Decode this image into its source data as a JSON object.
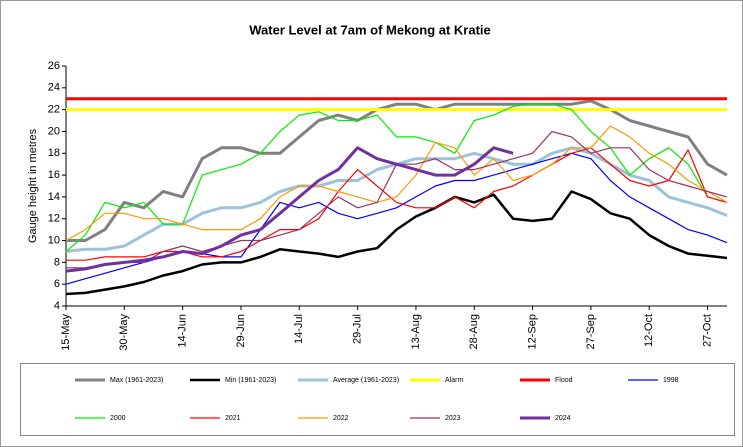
{
  "chart_data": {
    "type": "line",
    "title": "Water Level at 7am  of Mekong at Kratie",
    "y_label": "Gauge  height in metres",
    "categories": [
      "15-May",
      null,
      null,
      "30-May",
      null,
      null,
      "14-Jun",
      null,
      null,
      "29-Jun",
      null,
      null,
      "14-Jul",
      null,
      null,
      "29-Jul",
      null,
      null,
      "13-Aug",
      null,
      null,
      "28-Aug",
      null,
      null,
      "12-Sep",
      null,
      null,
      "27-Sep",
      null,
      null,
      "12-Oct",
      null,
      null,
      "27-Oct",
      null
    ],
    "ylim": [
      4,
      26
    ],
    "yticks": [
      4,
      6,
      8,
      10,
      12,
      14,
      16,
      18,
      20,
      22,
      24,
      26
    ],
    "series": [
      {
        "name": "Max (1961-2023)",
        "color": "#808080",
        "width": 3,
        "values": [
          10,
          10,
          11,
          13.5,
          13,
          14.5,
          14,
          17.5,
          18.5,
          18.5,
          18,
          18,
          19.5,
          21,
          21.5,
          21,
          22,
          22.5,
          22.5,
          22,
          22.5,
          22.5,
          22.5,
          22.5,
          22.5,
          22.5,
          22.5,
          22.8,
          22,
          21,
          20.5,
          20,
          19.5,
          17,
          16
        ]
      },
      {
        "name": "Min (1961-2023)",
        "color": "#000000",
        "width": 2.5,
        "values": [
          5.1,
          5.2,
          5.5,
          5.8,
          6.2,
          6.8,
          7.2,
          7.8,
          8,
          8,
          8.5,
          9.2,
          9,
          8.8,
          8.5,
          9,
          9.3,
          11,
          12.2,
          13,
          14,
          13.5,
          14.2,
          12,
          11.8,
          12,
          14.5,
          13.8,
          12.5,
          12,
          10.5,
          9.5,
          8.8,
          8.6,
          8.4
        ]
      },
      {
        "name": "Average (1961-2023)",
        "color": "#9cc3da",
        "width": 3,
        "values": [
          9,
          9.2,
          9.2,
          9.5,
          10.5,
          11.5,
          11.5,
          12.5,
          13,
          13,
          13.5,
          14.5,
          15,
          15,
          15.5,
          15.5,
          16.5,
          17,
          17.5,
          17.5,
          17.5,
          18,
          17.5,
          17,
          17,
          18,
          18.5,
          18,
          17,
          16,
          15.5,
          14,
          13.5,
          13,
          12.3
        ]
      },
      {
        "name": "Alarm",
        "color": "#ffff00",
        "width": 3,
        "values": [
          22,
          22,
          22,
          22,
          22,
          22,
          22,
          22,
          22,
          22,
          22,
          22,
          22,
          22,
          22,
          22,
          22,
          22,
          22,
          22,
          22,
          22,
          22,
          22,
          22,
          22,
          22,
          22,
          22,
          22,
          22,
          22,
          22,
          22,
          22
        ]
      },
      {
        "name": "Flood",
        "color": "#ff0000",
        "width": 3,
        "values": [
          23,
          23,
          23,
          23,
          23,
          23,
          23,
          23,
          23,
          23,
          23,
          23,
          23,
          23,
          23,
          23,
          23,
          23,
          23,
          23,
          23,
          23,
          23,
          23,
          23,
          23,
          23,
          23,
          23,
          23,
          23,
          23,
          23,
          23,
          23
        ]
      },
      {
        "name": "1998",
        "color": "#0000ff",
        "width": 1.2,
        "values": [
          6,
          6.5,
          7,
          7.5,
          8,
          8.5,
          9,
          8.8,
          8.5,
          8.5,
          11,
          13.5,
          13,
          13.5,
          12.5,
          12,
          12.5,
          13,
          14,
          15,
          15.5,
          15.5,
          16,
          16.5,
          17,
          17.5,
          18,
          17.5,
          15.5,
          14,
          13,
          12,
          11,
          10.5,
          9.8
        ]
      },
      {
        "name": "2000",
        "color": "#00ee00",
        "width": 1.2,
        "values": [
          9,
          10.5,
          13.5,
          13,
          13.5,
          11.5,
          11.5,
          16,
          16.5,
          17,
          18,
          20,
          21.5,
          21.8,
          21,
          21,
          21.5,
          19.5,
          19.5,
          19,
          18,
          21,
          21.5,
          22.3,
          22.5,
          22.5,
          22,
          20,
          18.5,
          16,
          17.5,
          18.5,
          17,
          14,
          13.5
        ]
      },
      {
        "name": "2021",
        "color": "#ff0000",
        "width": 1.2,
        "values": [
          8.2,
          8.2,
          8.5,
          8.5,
          8.5,
          9,
          9,
          8.5,
          8.5,
          9,
          10,
          11,
          11,
          12,
          14.5,
          16.5,
          15,
          13.5,
          13,
          13,
          14,
          13,
          14.5,
          15,
          16,
          17,
          18,
          18.5,
          17,
          15.5,
          15,
          15.5,
          18.3,
          14,
          13.5
        ]
      },
      {
        "name": "2022",
        "color": "#ff9900",
        "width": 1.2,
        "values": [
          10,
          11,
          12.5,
          12.5,
          12,
          12,
          11.5,
          11,
          11,
          11,
          12,
          14,
          15,
          15,
          14.5,
          14,
          13.5,
          14,
          16,
          19,
          18.5,
          16,
          17.5,
          15.5,
          16,
          17,
          18.5,
          18.5,
          20.5,
          19.5,
          18,
          17,
          15.5,
          14.5,
          13.5
        ]
      },
      {
        "name": "2023",
        "color": "#993366",
        "width": 1.2,
        "values": [
          7.5,
          7.5,
          7.8,
          8,
          8,
          9,
          9.5,
          9,
          9.5,
          10,
          10,
          10.5,
          11,
          12.5,
          14,
          13,
          13.5,
          17,
          17,
          17.5,
          16.5,
          16.5,
          17,
          17.5,
          18,
          20,
          19.5,
          18,
          18.5,
          18.5,
          16.5,
          15.5,
          15,
          14.5,
          14
        ]
      },
      {
        "name": "2024",
        "color": "#7030a0",
        "width": 3,
        "values": [
          7.2,
          7.4,
          7.8,
          8,
          8.2,
          8.5,
          9,
          8.8,
          9.5,
          10.5,
          11,
          12.5,
          14,
          15.5,
          16.5,
          18.5,
          17.5,
          17,
          16.5,
          16,
          16,
          17,
          18.5,
          18,
          null,
          null,
          null,
          null,
          null,
          null,
          null,
          null,
          null,
          null,
          null
        ]
      }
    ]
  }
}
